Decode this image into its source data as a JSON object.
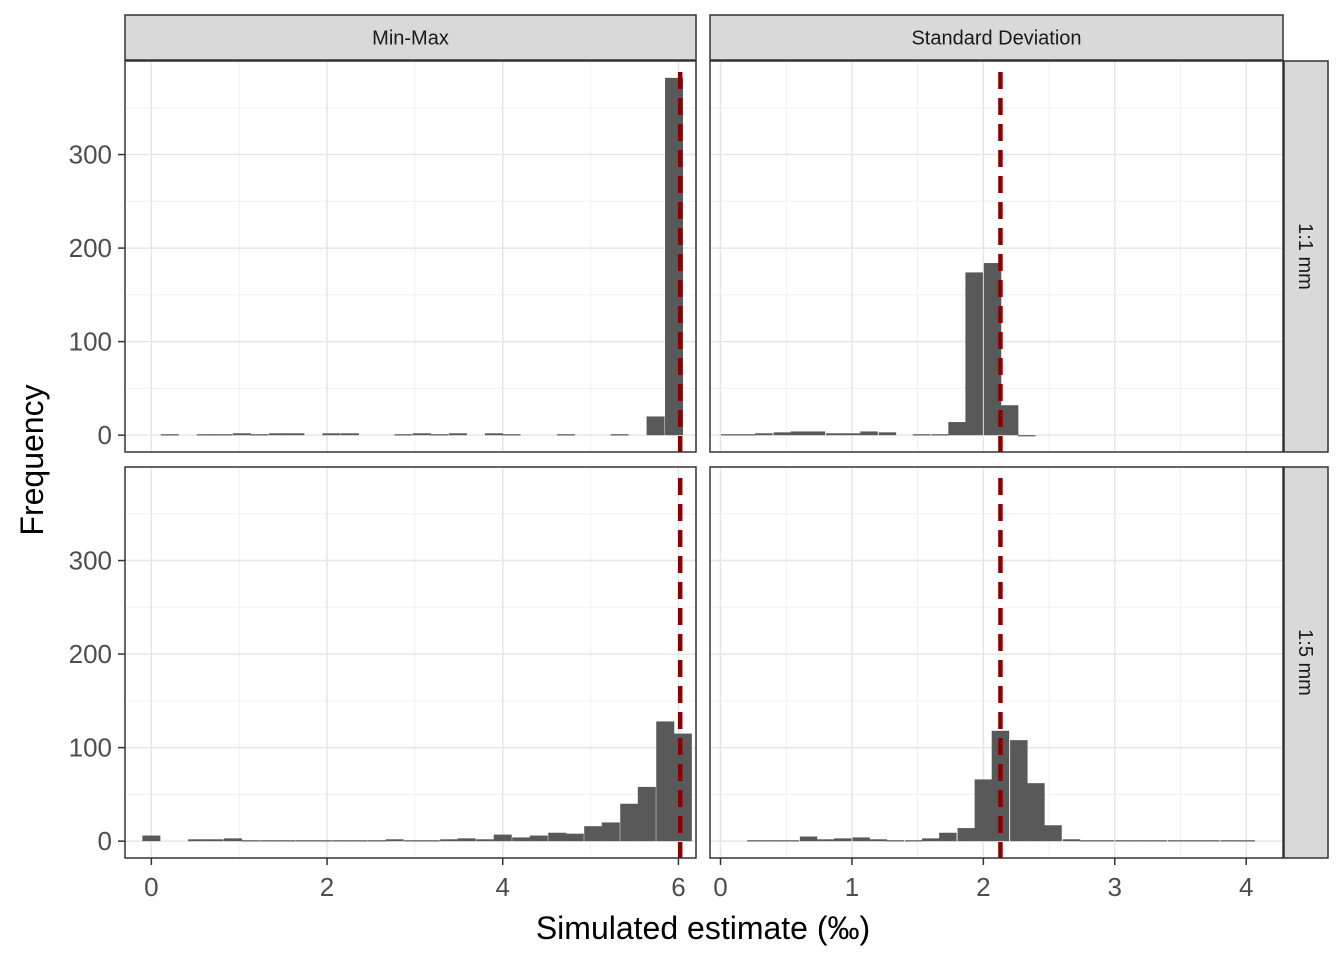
{
  "chart_data": {
    "type": "bar",
    "subtype": "faceted-histogram",
    "xlabel": "Simulated estimate (‰)",
    "ylabel": "Frequency",
    "ylim": [
      0,
      400
    ],
    "yticks": [
      0,
      100,
      200,
      300
    ],
    "grid": true,
    "reference_line": {
      "color": "#8b0000",
      "style": "dashed"
    },
    "columns": [
      {
        "label": "Min-Max",
        "xlim": [
          -0.3,
          6.2
        ],
        "xticks": [
          0,
          2,
          4,
          6
        ],
        "ref_x": 6.02,
        "bin_width": 0.205
      },
      {
        "label": "Standard Deviation",
        "xlim": [
          -0.08,
          4.28
        ],
        "xticks": [
          0,
          1,
          2,
          3,
          4
        ],
        "ref_x": 2.13,
        "bin_width": 0.133
      }
    ],
    "rows": [
      {
        "label": "1:1 mm"
      },
      {
        "label": "1:5 mm"
      }
    ],
    "panels": [
      {
        "column": "Min-Max",
        "row": "1:1 mm",
        "bin_centers": [
          0.21,
          0.62,
          0.82,
          1.03,
          1.23,
          1.44,
          1.64,
          2.05,
          2.26,
          2.87,
          3.08,
          3.28,
          3.49,
          3.9,
          4.1,
          4.72,
          5.33,
          5.74,
          5.95
        ],
        "counts": [
          1,
          1,
          1,
          2,
          1,
          2,
          2,
          2,
          2,
          1,
          2,
          1,
          2,
          2,
          1,
          1,
          1,
          20,
          382
        ]
      },
      {
        "column": "Standard Deviation",
        "row": "1:1 mm",
        "bin_centers": [
          0.07,
          0.2,
          0.33,
          0.47,
          0.6,
          0.73,
          0.87,
          1.0,
          1.13,
          1.27,
          1.53,
          1.67,
          1.8,
          1.93,
          2.07,
          2.2,
          2.33
        ],
        "counts": [
          1,
          1,
          2,
          3,
          4,
          4,
          2,
          2,
          4,
          3,
          1,
          1,
          14,
          174,
          184,
          32,
          0
        ]
      },
      {
        "column": "Min-Max",
        "row": "1:5 mm",
        "bin_centers": [
          0.0,
          0.52,
          0.72,
          0.93,
          1.13,
          1.34,
          1.54,
          1.75,
          1.95,
          2.16,
          2.36,
          2.57,
          2.77,
          2.98,
          3.18,
          3.39,
          3.59,
          3.8,
          4.0,
          4.21,
          4.41,
          4.62,
          4.82,
          5.03,
          5.23,
          5.44,
          5.64,
          5.85,
          6.05
        ],
        "counts": [
          6,
          2,
          2,
          3,
          1,
          1,
          1,
          1,
          1,
          1,
          1,
          1,
          2,
          1,
          1,
          2,
          3,
          2,
          7,
          4,
          6,
          9,
          8,
          16,
          20,
          40,
          58,
          128,
          115
        ]
      },
      {
        "column": "Standard Deviation",
        "row": "1:5 mm",
        "bin_centers": [
          0.27,
          0.4,
          0.53,
          0.67,
          0.8,
          0.93,
          1.07,
          1.2,
          1.33,
          1.47,
          1.6,
          1.73,
          1.87,
          2.0,
          2.13,
          2.27,
          2.4,
          2.53,
          2.67,
          2.8,
          2.93,
          3.07,
          3.2,
          3.33,
          3.47,
          3.6,
          3.73,
          3.87,
          4.0
        ],
        "counts": [
          1,
          1,
          1,
          5,
          2,
          3,
          4,
          2,
          1,
          1,
          3,
          9,
          14,
          66,
          118,
          108,
          62,
          17,
          2,
          1,
          1,
          1,
          1,
          1,
          1,
          1,
          1,
          1,
          1
        ]
      }
    ]
  }
}
